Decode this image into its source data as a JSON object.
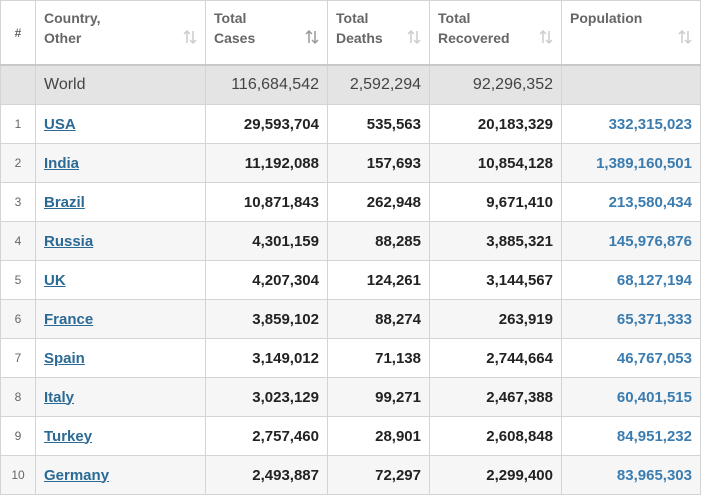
{
  "table": {
    "headers": [
      "#",
      "Country,\nOther",
      "Total\nCases",
      "Total\nDeaths",
      "Total\nRecovered",
      "Population"
    ],
    "world": {
      "label": "World",
      "cases": "116,684,542",
      "deaths": "2,592,294",
      "recovered": "92,296,352"
    },
    "rows": [
      [
        1,
        "USA",
        "29,593,704",
        "535,563",
        "20,183,329",
        "332,315,023"
      ],
      [
        2,
        "India",
        "11,192,088",
        "157,693",
        "10,854,128",
        "1,389,160,501"
      ],
      [
        3,
        "Brazil",
        "10,871,843",
        "262,948",
        "9,671,410",
        "213,580,434"
      ],
      [
        4,
        "Russia",
        "4,301,159",
        "88,285",
        "3,885,321",
        "145,976,876"
      ],
      [
        5,
        "UK",
        "4,207,304",
        "124,261",
        "3,144,567",
        "68,127,194"
      ],
      [
        6,
        "France",
        "3,859,102",
        "88,274",
        "263,919",
        "65,371,333"
      ],
      [
        7,
        "Spain",
        "3,149,012",
        "71,138",
        "2,744,664",
        "46,767,053"
      ],
      [
        8,
        "Italy",
        "3,023,129",
        "99,271",
        "2,467,388",
        "60,401,515"
      ],
      [
        9,
        "Turkey",
        "2,757,460",
        "28,901",
        "2,608,848",
        "84,951,232"
      ],
      [
        10,
        "Germany",
        "2,493,887",
        "72,297",
        "2,299,400",
        "83,965,303"
      ]
    ]
  }
}
